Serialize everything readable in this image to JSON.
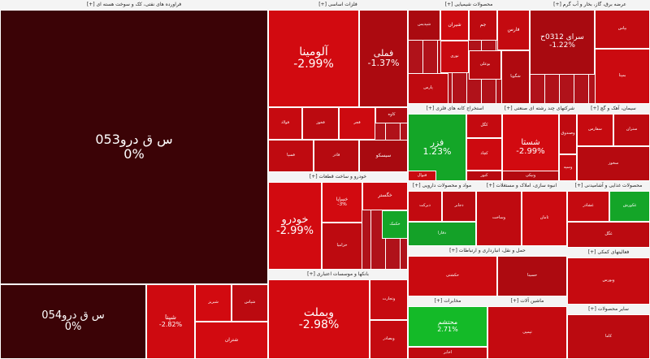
{
  "chart_data": {
    "type": "treemap",
    "sectors": [
      {
        "label": "فراورده های نفتی، کک و سوخت هسته ای [+]",
        "tiles": [
          {
            "symbol": "س ق درو053",
            "change": "0%",
            "value": 0
          },
          {
            "symbol": "س ق درو054",
            "change": "0%",
            "value": 0
          },
          {
            "symbol": "شپنا",
            "change": "-2.82%",
            "value": -2.82
          },
          {
            "symbol": "شبریز",
            "change": "",
            "value": -3
          },
          {
            "symbol": "شپاس",
            "change": "",
            "value": -2
          },
          {
            "symbol": "شتران",
            "change": "",
            "value": -3
          }
        ]
      },
      {
        "label": "فلزات اساسی [+]",
        "tiles": [
          {
            "symbol": "فملی",
            "change": "-1.37%",
            "value": -1.37
          },
          {
            "symbol": "آلومینا",
            "change": "-2.99%",
            "value": -2.99
          },
          {
            "symbol": "فولاد",
            "change": "",
            "value": -2.5
          },
          {
            "symbol": "فخوز",
            "change": "",
            "value": -2
          },
          {
            "symbol": "فجر",
            "change": "",
            "value": -2.8
          },
          {
            "symbol": "کاوه",
            "change": "",
            "value": -1.5
          },
          {
            "symbol": "فسپا",
            "change": "",
            "value": -2.2
          },
          {
            "symbol": "فاذر",
            "change": "",
            "value": -1.8
          },
          {
            "symbol": "سیسکو",
            "change": "",
            "value": -1.2
          }
        ]
      },
      {
        "label": "خودرو و ساخت قطعات [+]",
        "tiles": [
          {
            "symbol": "خودرو",
            "change": "-2.99%",
            "value": -2.99
          },
          {
            "symbol": "خساپا",
            "change": "-3%",
            "value": -3
          },
          {
            "symbol": "خگستر",
            "change": "",
            "value": -2.6
          },
          {
            "symbol": "خکمک",
            "change": "",
            "value": 1.2
          },
          {
            "symbol": "خزامیا",
            "change": "",
            "value": -2.1
          }
        ]
      },
      {
        "label": "بانکها و موسسات اعتباری [+]",
        "tiles": [
          {
            "symbol": "وبملت",
            "change": "-2.98%",
            "value": -2.98
          },
          {
            "symbol": "وتجارت",
            "change": "",
            "value": -2.5
          },
          {
            "symbol": "وبصادر",
            "change": "",
            "value": -2.4
          }
        ]
      },
      {
        "label": "محصولات شیمیایی [+]",
        "tiles": [
          {
            "symbol": "فارس",
            "change": "",
            "value": -2.4
          },
          {
            "symbol": "شیران",
            "change": "",
            "value": -2.8
          },
          {
            "symbol": "جم",
            "change": "",
            "value": -2.1
          },
          {
            "symbol": "شپدیس",
            "change": "",
            "value": -1.3
          },
          {
            "symbol": "نوری",
            "change": "",
            "value": -2.6
          },
          {
            "symbol": "بوعلی",
            "change": "",
            "value": -1.9
          },
          {
            "symbol": "پارس",
            "change": "",
            "value": -2.2
          },
          {
            "symbol": "شگویا",
            "change": "",
            "value": -1.5
          }
        ]
      },
      {
        "label": "عرضه برق، گاز، بخار و آب گرم [+]",
        "tiles": [
          {
            "symbol": "سرای 0312ح",
            "change": "-1.22%",
            "value": -1.22
          },
          {
            "symbol": "بپاس",
            "change": "",
            "value": -2.3
          },
          {
            "symbol": "بمپنا",
            "change": "",
            "value": -2.7
          }
        ]
      },
      {
        "label": "استخراج کانه های فلزی [+]",
        "tiles": [
          {
            "symbol": "فزر",
            "change": "1.23%",
            "value": 1.23
          },
          {
            "symbol": "کچاد",
            "change": "",
            "value": -2.8
          },
          {
            "symbol": "کگل",
            "change": "",
            "value": -2.4
          },
          {
            "symbol": "فنوال",
            "change": "",
            "value": -2.6
          },
          {
            "symbol": "کنور",
            "change": "",
            "value": -1.9
          }
        ]
      },
      {
        "label": "شرکتهای چند رشته ای صنعتی [+]",
        "tiles": [
          {
            "symbol": "شستا",
            "change": "-2.99%",
            "value": -2.99
          },
          {
            "symbol": "وصندوق",
            "change": "",
            "value": -2.2
          },
          {
            "symbol": "وسپه",
            "change": "",
            "value": -2.5
          },
          {
            "symbol": "ونیکی",
            "change": "",
            "value": -1.7
          }
        ]
      },
      {
        "label": "سیمان، آهک و گچ [+]",
        "tiles": [
          {
            "symbol": "سفارس",
            "change": "",
            "value": -2.5
          },
          {
            "symbol": "ستران",
            "change": "",
            "value": -2.1
          },
          {
            "symbol": "سخوز",
            "change": "",
            "value": -1.8
          }
        ]
      },
      {
        "label": "محصولات غذایی و آشامیدنی [+]",
        "tiles": [
          {
            "symbol": "غشاذر",
            "change": "",
            "value": -2.4
          },
          {
            "symbol": "غکورش",
            "change": "",
            "value": 1.1
          },
          {
            "symbol": "غگل",
            "change": "",
            "value": -2.0
          }
        ]
      },
      {
        "label": "مواد و محصولات دارویی [+]",
        "tiles": [
          {
            "symbol": "دبرکت",
            "change": "",
            "value": -2.3
          },
          {
            "symbol": "دجابر",
            "change": "",
            "value": -1.9
          },
          {
            "symbol": "دفارا",
            "change": "",
            "value": 0.8
          }
        ]
      },
      {
        "label": "انبوه سازی، املاک و مستغلات [+]",
        "tiles": [
          {
            "symbol": "وساخت",
            "change": "",
            "value": -2.2
          },
          {
            "symbol": "ثامان",
            "change": "",
            "value": -2.7
          }
        ]
      },
      {
        "label": "حمل و نقل، انبارداری و ارتباطات [+]",
        "tiles": [
          {
            "symbol": "حکشتی",
            "change": "",
            "value": -2.6
          },
          {
            "symbol": "حسینا",
            "change": "",
            "value": -1.4
          }
        ]
      },
      {
        "label": "مخابرات [+]",
        "tiles": [
          {
            "symbol": "محتشم",
            "change": "2.71%",
            "value": 2.71
          },
          {
            "symbol": "اخابر",
            "change": "",
            "value": -2.2
          }
        ]
      },
      {
        "label": "ماشین آلات [+]",
        "tiles": [
          {
            "symbol": "تپمپی",
            "change": "",
            "value": -2.4
          }
        ]
      },
      {
        "label": "فعالیتهای کمکی [+]",
        "tiles": [
          {
            "symbol": "وبورس",
            "change": "",
            "value": -2.5
          }
        ]
      },
      {
        "label": "سایر محصولات [+]",
        "tiles": [
          {
            "symbol": "کاما",
            "change": "",
            "value": -2.0
          }
        ]
      }
    ]
  }
}
